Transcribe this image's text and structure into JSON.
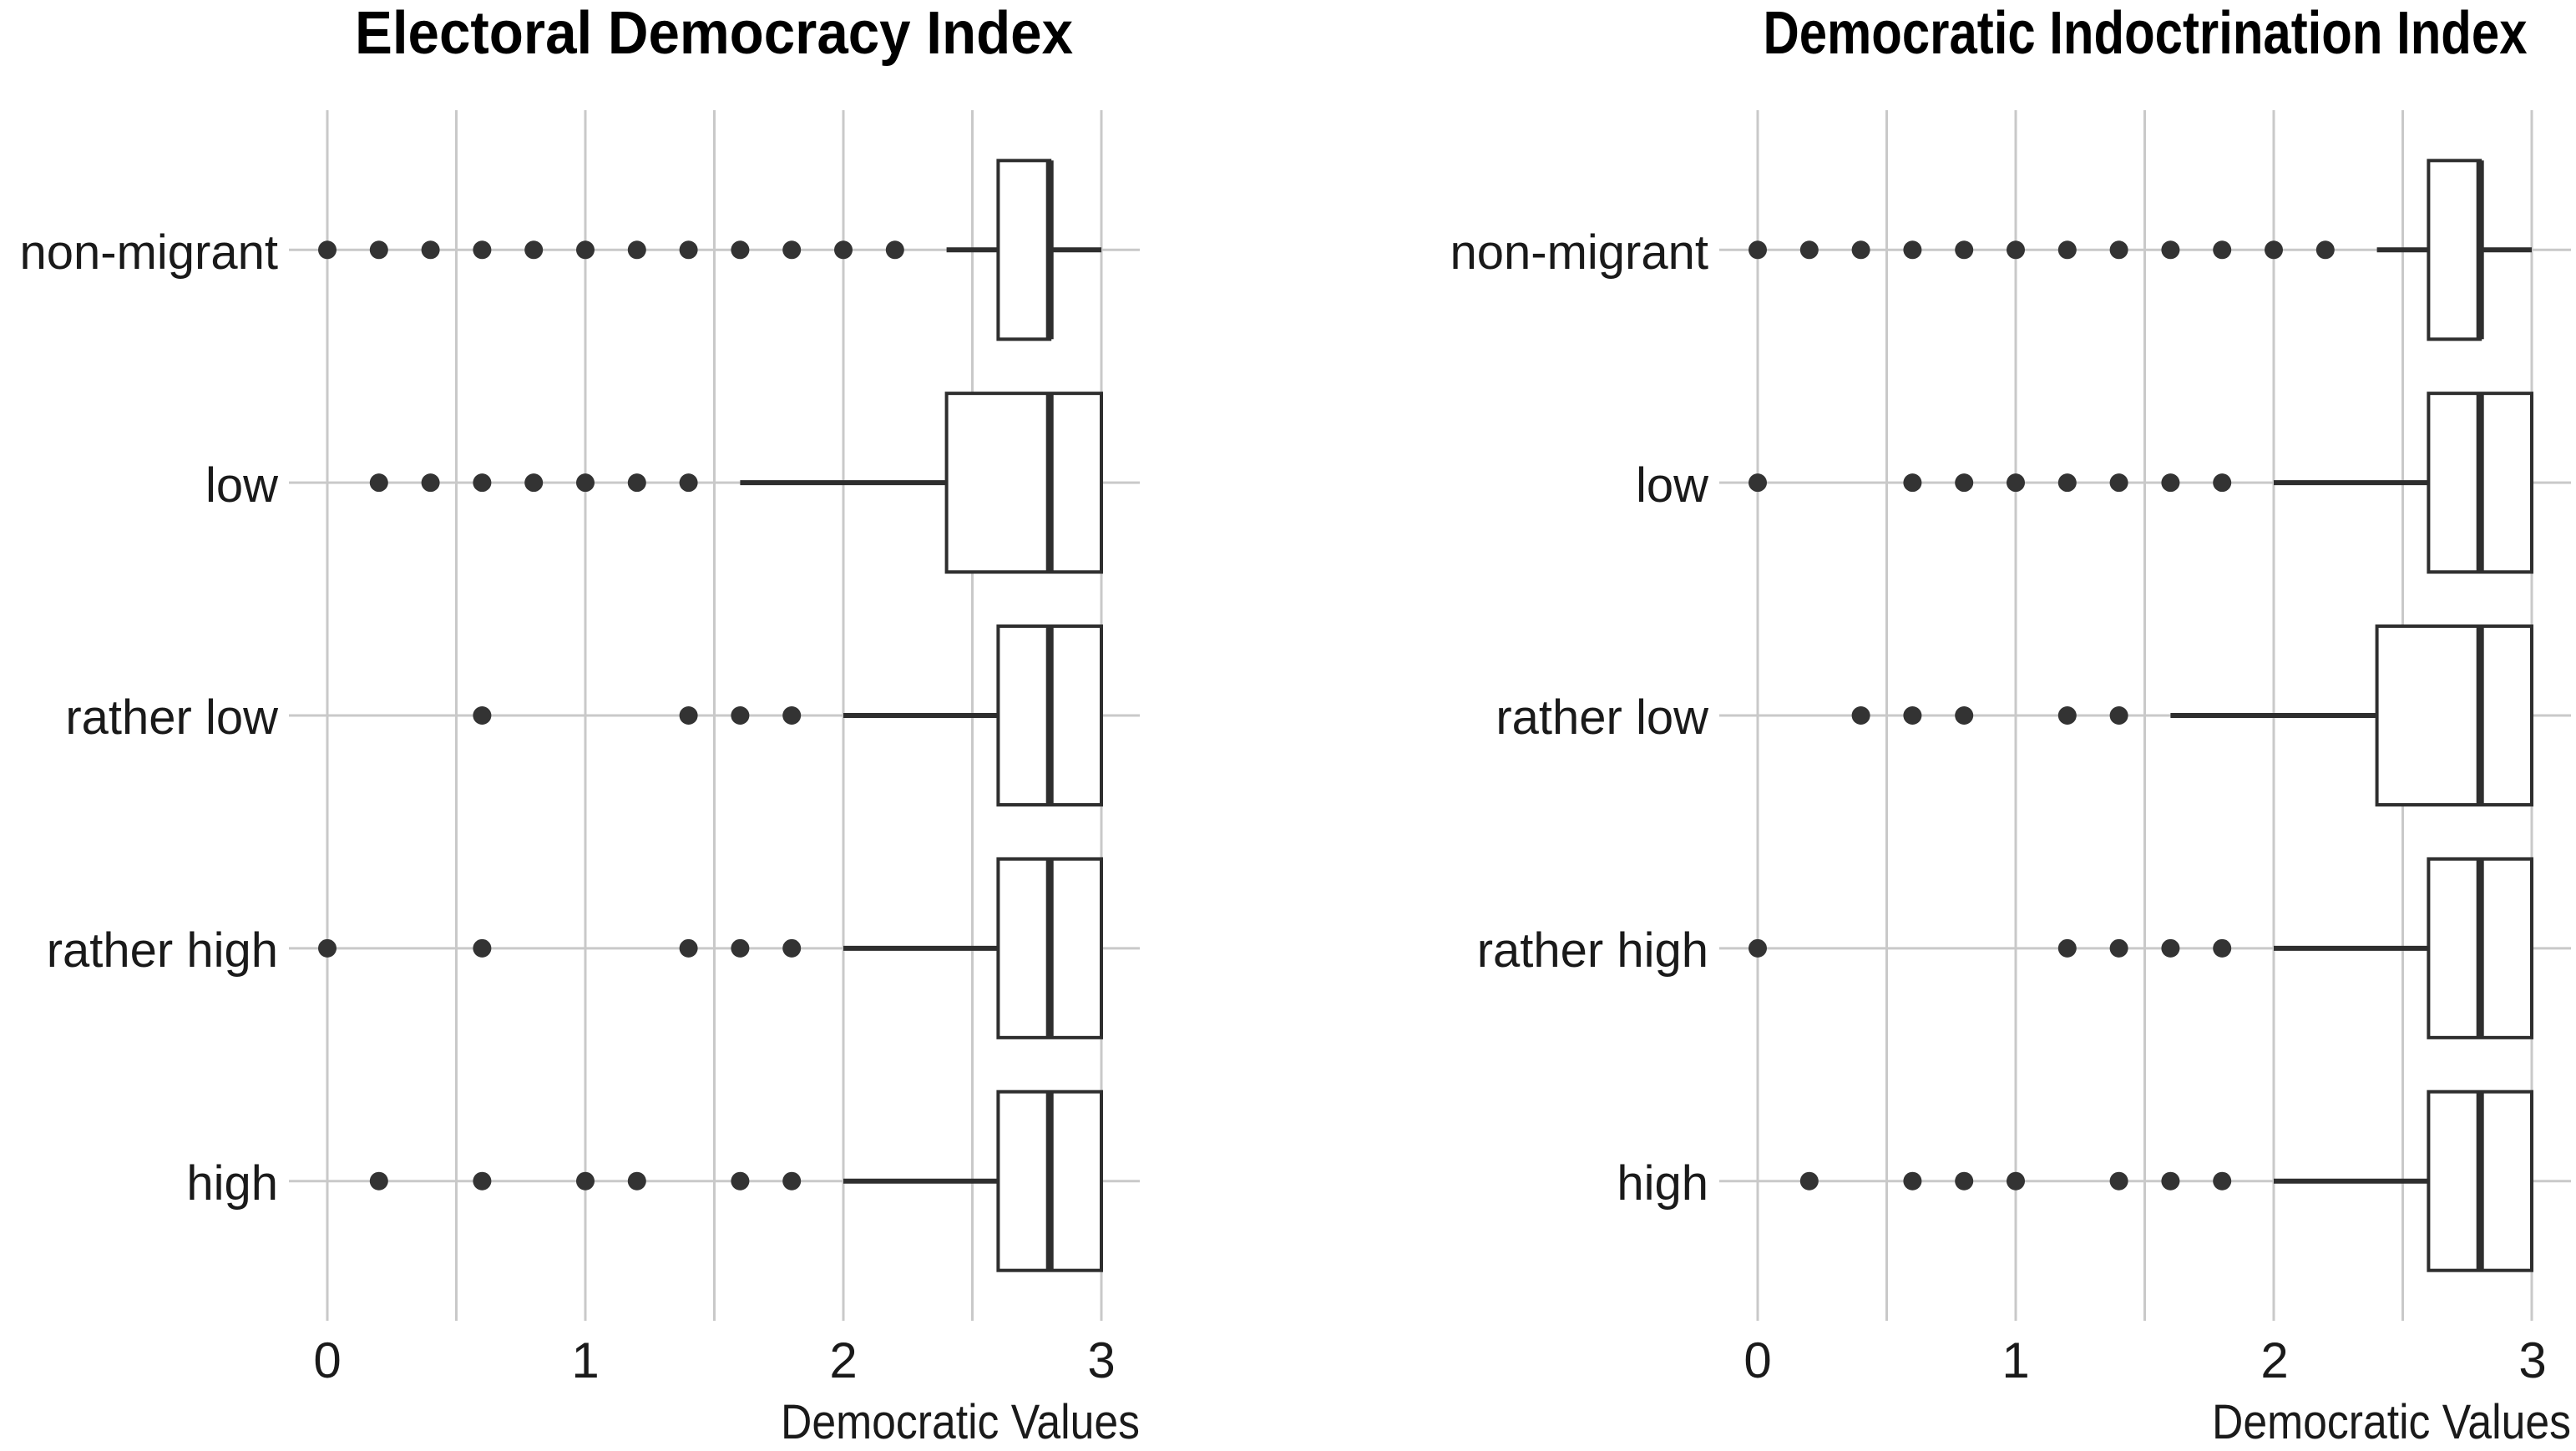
{
  "style": {
    "background": "#ffffff",
    "box_stroke": "#2e2e2e",
    "box_fill": "#ffffff",
    "outlier_fill": "#333333",
    "grid_color": "#c9c9c9",
    "text_color": "#1a1a1a"
  },
  "chart_data": [
    {
      "type": "boxplot",
      "orientation": "horizontal",
      "title": "Electoral Democracy Index",
      "xlabel": "Democratic Values",
      "xlim": [
        0,
        3
      ],
      "xticks": [
        "0",
        "1",
        "2",
        "3"
      ],
      "xtick_values": [
        0,
        1,
        2,
        3
      ],
      "grid_step": 0.5,
      "grid": "on",
      "categories": [
        "non-migrant",
        "low",
        "rather low",
        "rather high",
        "high"
      ],
      "boxes": [
        {
          "category": "non-migrant",
          "whisker_low": 2.4,
          "q1": 2.6,
          "median": 2.8,
          "q3": 2.8,
          "whisker_high": 3.0,
          "outliers": [
            0,
            0.2,
            0.4,
            0.6,
            0.8,
            1.0,
            1.2,
            1.4,
            1.6,
            1.8,
            2.0,
            2.2
          ]
        },
        {
          "category": "low",
          "whisker_low": 1.6,
          "q1": 2.4,
          "median": 2.8,
          "q3": 3.0,
          "whisker_high": 3.0,
          "outliers": [
            0.2,
            0.4,
            0.6,
            0.8,
            1.0,
            1.2,
            1.4
          ]
        },
        {
          "category": "rather low",
          "whisker_low": 2.0,
          "q1": 2.6,
          "median": 2.8,
          "q3": 3.0,
          "whisker_high": 3.0,
          "outliers": [
            0.6,
            1.4,
            1.6,
            1.8
          ]
        },
        {
          "category": "rather high",
          "whisker_low": 2.0,
          "q1": 2.6,
          "median": 2.8,
          "q3": 3.0,
          "whisker_high": 3.0,
          "outliers": [
            0,
            0.6,
            1.4,
            1.6,
            1.8
          ]
        },
        {
          "category": "high",
          "whisker_low": 2.0,
          "q1": 2.6,
          "median": 2.8,
          "q3": 3.0,
          "whisker_high": 3.0,
          "outliers": [
            0.2,
            0.6,
            1.0,
            1.2,
            1.6,
            1.8
          ]
        }
      ]
    },
    {
      "type": "boxplot",
      "orientation": "horizontal",
      "title": "Democratic Indoctrination Index",
      "xlabel": "Democratic Values",
      "xlim": [
        0,
        3
      ],
      "xticks": [
        "0",
        "1",
        "2",
        "3"
      ],
      "xtick_values": [
        0,
        1,
        2,
        3
      ],
      "grid_step": 0.5,
      "grid": "on",
      "categories": [
        "non-migrant",
        "low",
        "rather low",
        "rather high",
        "high"
      ],
      "boxes": [
        {
          "category": "non-migrant",
          "whisker_low": 2.4,
          "q1": 2.6,
          "median": 2.8,
          "q3": 2.8,
          "whisker_high": 3.0,
          "outliers": [
            0,
            0.2,
            0.4,
            0.6,
            0.8,
            1.0,
            1.2,
            1.4,
            1.6,
            1.8,
            2.0,
            2.2
          ]
        },
        {
          "category": "low",
          "whisker_low": 2.0,
          "q1": 2.6,
          "median": 2.8,
          "q3": 3.0,
          "whisker_high": 3.0,
          "outliers": [
            0,
            0.6,
            0.8,
            1.0,
            1.2,
            1.4,
            1.6,
            1.8
          ]
        },
        {
          "category": "rather low",
          "whisker_low": 1.6,
          "q1": 2.4,
          "median": 2.8,
          "q3": 3.0,
          "whisker_high": 3.0,
          "outliers": [
            0.4,
            0.6,
            0.8,
            1.2,
            1.4
          ]
        },
        {
          "category": "rather high",
          "whisker_low": 2.0,
          "q1": 2.6,
          "median": 2.8,
          "q3": 3.0,
          "whisker_high": 3.0,
          "outliers": [
            0,
            1.2,
            1.4,
            1.6,
            1.8
          ]
        },
        {
          "category": "high",
          "whisker_low": 2.0,
          "q1": 2.6,
          "median": 2.8,
          "q3": 3.0,
          "whisker_high": 3.0,
          "outliers": [
            0.2,
            0.6,
            0.8,
            1.0,
            1.4,
            1.6,
            1.8
          ]
        }
      ]
    }
  ]
}
